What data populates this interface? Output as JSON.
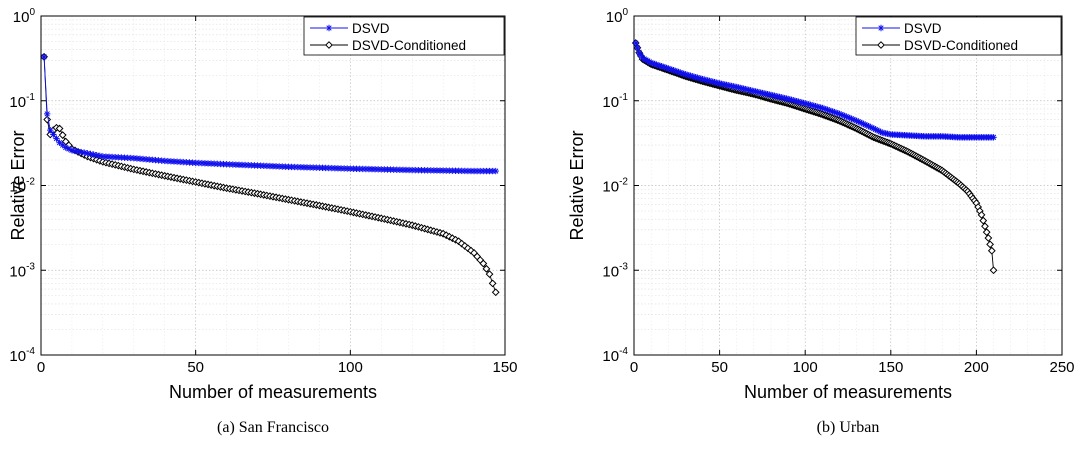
{
  "chart_data": [
    {
      "type": "line",
      "caption": "(a) San Francisco",
      "xlabel": "Number of measurements",
      "ylabel": "Relative Error",
      "xlim": [
        0,
        150
      ],
      "ylim": [
        0.0001,
        1
      ],
      "yscale": "log",
      "xticks": [
        "0",
        "50",
        "100",
        "150"
      ],
      "yticks": [
        {
          "base": "10",
          "exp": "-4"
        },
        {
          "base": "10",
          "exp": "-3"
        },
        {
          "base": "10",
          "exp": "-2"
        },
        {
          "base": "10",
          "exp": "-1"
        },
        {
          "base": "10",
          "exp": "0"
        }
      ],
      "grid": true,
      "legend_position": "top-right",
      "series": [
        {
          "name": "DSVD",
          "color": "#1010ee",
          "marker": "asterisk",
          "x": [
            1,
            2,
            3,
            4,
            6,
            8,
            10,
            15,
            20,
            30,
            40,
            50,
            60,
            70,
            80,
            90,
            100,
            110,
            120,
            130,
            140,
            147
          ],
          "y": [
            0.33,
            0.07,
            0.045,
            0.04,
            0.032,
            0.028,
            0.026,
            0.024,
            0.022,
            0.021,
            0.0195,
            0.0185,
            0.0178,
            0.0172,
            0.0166,
            0.0162,
            0.0158,
            0.0155,
            0.0152,
            0.015,
            0.0148,
            0.0148
          ]
        },
        {
          "name": "DSVD-Conditioned",
          "color": "#000000",
          "marker": "diamond",
          "x": [
            1,
            2,
            3,
            4,
            5,
            6,
            8,
            10,
            15,
            20,
            30,
            40,
            50,
            60,
            70,
            80,
            90,
            100,
            110,
            120,
            130,
            135,
            140,
            143,
            145,
            146,
            147
          ],
          "y": [
            0.33,
            0.06,
            0.04,
            0.045,
            0.048,
            0.047,
            0.033,
            0.027,
            0.022,
            0.019,
            0.0155,
            0.013,
            0.011,
            0.0093,
            0.008,
            0.0068,
            0.0058,
            0.0049,
            0.0041,
            0.0034,
            0.0027,
            0.0022,
            0.0016,
            0.0012,
            0.0009,
            0.0007,
            0.00055
          ]
        }
      ]
    },
    {
      "type": "line",
      "caption": "(b) Urban",
      "xlabel": "Number of measurements",
      "ylabel": "Relative Error",
      "xlim": [
        0,
        250
      ],
      "ylim": [
        0.0001,
        1
      ],
      "yscale": "log",
      "xticks": [
        "0",
        "50",
        "100",
        "150",
        "200",
        "250"
      ],
      "yticks": [
        {
          "base": "10",
          "exp": "-4"
        },
        {
          "base": "10",
          "exp": "-3"
        },
        {
          "base": "10",
          "exp": "-2"
        },
        {
          "base": "10",
          "exp": "-1"
        },
        {
          "base": "10",
          "exp": "0"
        }
      ],
      "grid": true,
      "legend_position": "top-right",
      "series": [
        {
          "name": "DSVD",
          "color": "#1010ee",
          "marker": "asterisk",
          "x": [
            1,
            3,
            5,
            10,
            20,
            30,
            40,
            50,
            60,
            70,
            80,
            90,
            100,
            110,
            120,
            130,
            140,
            145,
            150,
            160,
            170,
            180,
            190,
            200,
            210
          ],
          "y": [
            0.48,
            0.37,
            0.32,
            0.28,
            0.24,
            0.205,
            0.18,
            0.16,
            0.145,
            0.13,
            0.117,
            0.105,
            0.093,
            0.082,
            0.07,
            0.058,
            0.047,
            0.042,
            0.04,
            0.039,
            0.038,
            0.038,
            0.037,
            0.037,
            0.037
          ]
        },
        {
          "name": "DSVD-Conditioned",
          "color": "#000000",
          "marker": "diamond",
          "x": [
            1,
            3,
            5,
            10,
            20,
            30,
            40,
            50,
            60,
            70,
            80,
            90,
            100,
            110,
            120,
            130,
            140,
            150,
            160,
            170,
            180,
            190,
            195,
            200,
            203,
            205,
            207,
            209,
            210
          ],
          "y": [
            0.48,
            0.37,
            0.31,
            0.27,
            0.23,
            0.195,
            0.17,
            0.15,
            0.133,
            0.12,
            0.105,
            0.093,
            0.08,
            0.069,
            0.058,
            0.047,
            0.037,
            0.031,
            0.025,
            0.0195,
            0.015,
            0.0105,
            0.0085,
            0.0062,
            0.0045,
            0.0033,
            0.0024,
            0.0017,
            0.001
          ]
        }
      ]
    }
  ]
}
